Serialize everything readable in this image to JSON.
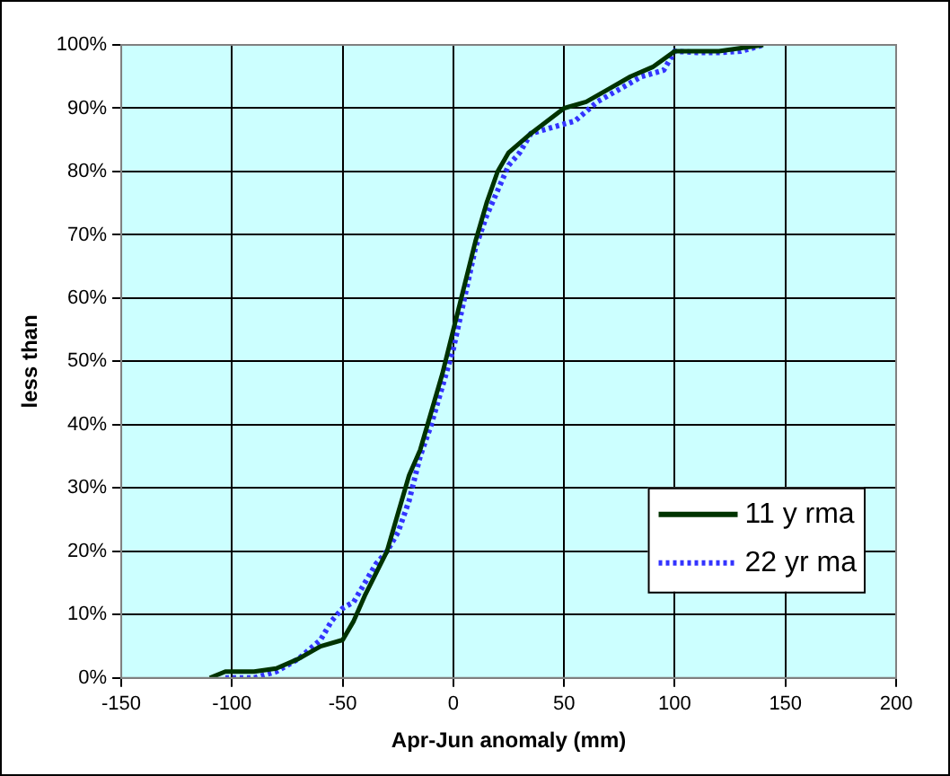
{
  "chart_data": {
    "type": "line",
    "xlabel": "Apr-Jun anomaly (mm)",
    "ylabel": "less than",
    "xlim": [
      -150,
      200
    ],
    "xticks": [
      -150,
      -100,
      -50,
      0,
      50,
      100,
      150,
      200
    ],
    "ylim": [
      0,
      100
    ],
    "yticks": [
      {
        "value": 0,
        "label": "0%"
      },
      {
        "value": 10,
        "label": "10%"
      },
      {
        "value": 20,
        "label": "20%"
      },
      {
        "value": 30,
        "label": "30%"
      },
      {
        "value": 40,
        "label": "40%"
      },
      {
        "value": 50,
        "label": "50%"
      },
      {
        "value": 60,
        "label": "60%"
      },
      {
        "value": 70,
        "label": "70%"
      },
      {
        "value": 80,
        "label": "80%"
      },
      {
        "value": 90,
        "label": "90%"
      },
      {
        "value": 100,
        "label": "100%"
      }
    ],
    "grid": true,
    "legend": "bottom right",
    "marker": "none",
    "series": [
      {
        "name": "11 y rma",
        "color": "#003300",
        "line_style": "solid",
        "x": [
          -110,
          -103,
          -90,
          -80,
          -70,
          -60,
          -50,
          -45,
          -40,
          -30,
          -25,
          -20,
          -15,
          -10,
          -5,
          0,
          5,
          10,
          15,
          20,
          25,
          35,
          50,
          60,
          70,
          80,
          90,
          100,
          110,
          120,
          130,
          140
        ],
        "values": [
          0,
          1,
          1,
          1.5,
          3,
          5,
          6,
          9,
          13,
          20,
          26,
          32,
          36,
          42,
          48,
          55,
          62,
          69,
          75,
          80,
          83,
          86,
          90,
          91,
          93,
          95,
          96.5,
          99,
          99,
          99,
          99.5,
          100
        ]
      },
      {
        "name": "22 yr ma",
        "color": "#3333ff",
        "line_style": "dotted",
        "x": [
          -103,
          -90,
          -80,
          -70,
          -60,
          -55,
          -50,
          -45,
          -40,
          -35,
          -30,
          -25,
          -20,
          -15,
          -10,
          -5,
          0,
          5,
          10,
          15,
          20,
          25,
          30,
          35,
          45,
          55,
          65,
          75,
          85,
          95,
          100,
          110,
          120,
          130,
          140
        ],
        "values": [
          0,
          0,
          1,
          3,
          6,
          9,
          11,
          12,
          15,
          18,
          20,
          23,
          28,
          35,
          40,
          46,
          52,
          60,
          68,
          73,
          77,
          81,
          83,
          86,
          87,
          88,
          91,
          93,
          95,
          96,
          99,
          98.8,
          98.8,
          99,
          100
        ]
      }
    ]
  }
}
